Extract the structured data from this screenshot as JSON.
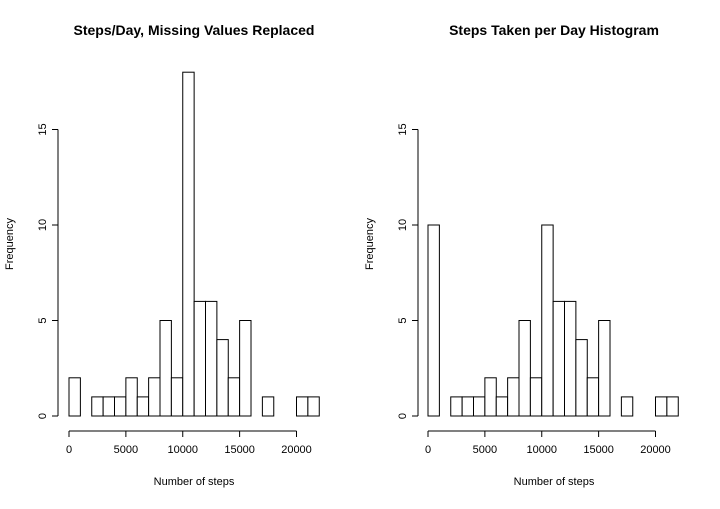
{
  "chart_data": [
    {
      "type": "bar",
      "title": "Steps/Day, Missing Values Replaced",
      "xlabel": "Number of steps",
      "ylabel": "Frequency",
      "bin_width": 1000,
      "x_ticks": [
        0,
        5000,
        10000,
        15000,
        20000
      ],
      "y_ticks": [
        0,
        5,
        10,
        15
      ],
      "bins": [
        {
          "start": 0,
          "end": 1000,
          "count": 2
        },
        {
          "start": 1000,
          "end": 2000,
          "count": 0
        },
        {
          "start": 2000,
          "end": 3000,
          "count": 1
        },
        {
          "start": 3000,
          "end": 4000,
          "count": 1
        },
        {
          "start": 4000,
          "end": 5000,
          "count": 1
        },
        {
          "start": 5000,
          "end": 6000,
          "count": 2
        },
        {
          "start": 6000,
          "end": 7000,
          "count": 1
        },
        {
          "start": 7000,
          "end": 8000,
          "count": 2
        },
        {
          "start": 8000,
          "end": 9000,
          "count": 5
        },
        {
          "start": 9000,
          "end": 10000,
          "count": 2
        },
        {
          "start": 10000,
          "end": 11000,
          "count": 18
        },
        {
          "start": 11000,
          "end": 12000,
          "count": 6
        },
        {
          "start": 12000,
          "end": 13000,
          "count": 6
        },
        {
          "start": 13000,
          "end": 14000,
          "count": 4
        },
        {
          "start": 14000,
          "end": 15000,
          "count": 2
        },
        {
          "start": 15000,
          "end": 16000,
          "count": 5
        },
        {
          "start": 16000,
          "end": 17000,
          "count": 0
        },
        {
          "start": 17000,
          "end": 18000,
          "count": 1
        },
        {
          "start": 18000,
          "end": 19000,
          "count": 0
        },
        {
          "start": 19000,
          "end": 20000,
          "count": 0
        },
        {
          "start": 20000,
          "end": 21000,
          "count": 1
        },
        {
          "start": 21000,
          "end": 22000,
          "count": 1
        }
      ]
    },
    {
      "type": "bar",
      "title": "Steps Taken per Day Histogram",
      "xlabel": "Number of steps",
      "ylabel": "Frequency",
      "bin_width": 1000,
      "x_ticks": [
        0,
        5000,
        10000,
        15000,
        20000
      ],
      "y_ticks": [
        0,
        5,
        10,
        15
      ],
      "bins": [
        {
          "start": 0,
          "end": 1000,
          "count": 10
        },
        {
          "start": 1000,
          "end": 2000,
          "count": 0
        },
        {
          "start": 2000,
          "end": 3000,
          "count": 1
        },
        {
          "start": 3000,
          "end": 4000,
          "count": 1
        },
        {
          "start": 4000,
          "end": 5000,
          "count": 1
        },
        {
          "start": 5000,
          "end": 6000,
          "count": 2
        },
        {
          "start": 6000,
          "end": 7000,
          "count": 1
        },
        {
          "start": 7000,
          "end": 8000,
          "count": 2
        },
        {
          "start": 8000,
          "end": 9000,
          "count": 5
        },
        {
          "start": 9000,
          "end": 10000,
          "count": 2
        },
        {
          "start": 10000,
          "end": 11000,
          "count": 10
        },
        {
          "start": 11000,
          "end": 12000,
          "count": 6
        },
        {
          "start": 12000,
          "end": 13000,
          "count": 6
        },
        {
          "start": 13000,
          "end": 14000,
          "count": 4
        },
        {
          "start": 14000,
          "end": 15000,
          "count": 2
        },
        {
          "start": 15000,
          "end": 16000,
          "count": 5
        },
        {
          "start": 16000,
          "end": 17000,
          "count": 0
        },
        {
          "start": 17000,
          "end": 18000,
          "count": 1
        },
        {
          "start": 18000,
          "end": 19000,
          "count": 0
        },
        {
          "start": 19000,
          "end": 20000,
          "count": 0
        },
        {
          "start": 20000,
          "end": 21000,
          "count": 1
        },
        {
          "start": 21000,
          "end": 22000,
          "count": 1
        }
      ]
    }
  ]
}
